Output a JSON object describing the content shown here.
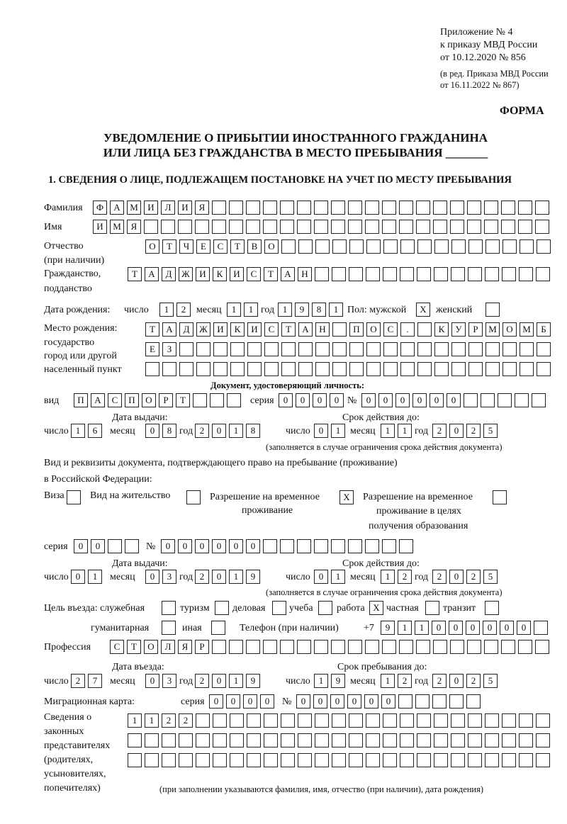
{
  "header": {
    "appendix_line1": "Приложение № 4",
    "appendix_line2": "к приказу МВД России",
    "appendix_line3": "от 10.12.2020 № 856",
    "edition_line1": "(в ред. Приказа МВД России",
    "edition_line2": "от 16.11.2022 № 867)",
    "form_label": "ФОРМА"
  },
  "title": {
    "line1": "УВЕДОМЛЕНИЕ О ПРИБЫТИИ ИНОСТРАННОГО ГРАЖДАНИНА",
    "line2": "ИЛИ ЛИЦА БЕЗ ГРАЖДАНСТВА В МЕСТО ПРЕБЫВАНИЯ _______"
  },
  "section1": {
    "heading": "1. СВЕДЕНИЯ О ЛИЦЕ, ПОДЛЕЖАЩЕМ ПОСТАНОВКЕ НА УЧЕТ ПО МЕСТУ ПРЕБЫВАНИЯ",
    "labels": {
      "surname": "Фамилия",
      "name": "Имя",
      "patronymic": "Отчество",
      "patronymic_note": "(при наличии)",
      "citizenship": "Гражданство,",
      "citizenship2": "подданство",
      "birth_date": "Дата рождения:",
      "day": "число",
      "month": "месяц",
      "year": "год",
      "sex_male": "Пол: мужской",
      "sex_female": "женский",
      "birthplace1": "Место рождения:",
      "birthplace2": "государство",
      "birthplace3": "город или другой",
      "birthplace4": "населенный пункт",
      "id_doc": "Документ, удостоверяющий личность:",
      "kind": "вид",
      "series": "серия",
      "number": "№",
      "issue_date": "Дата выдачи:",
      "valid_until": "Срок действия до:",
      "valid_note": "(заполняется в случае ограничения срока действия документа)",
      "stay_doc1": "Вид и реквизиты документа, подтверждающего право на пребывание (проживание)",
      "stay_doc2": "в Российской Федерации:",
      "visa": "Виза",
      "residence": "Вид на жительство",
      "temp_res1": "Разрешение на временное",
      "temp_res2": "проживание",
      "temp_edu1": "Разрешение на временное",
      "temp_edu2": "проживание в целях",
      "temp_edu3": "получения образования",
      "purpose": "Цель въезда: служебная",
      "tourism": "туризм",
      "business": "деловая",
      "study": "учеба",
      "work": "работа",
      "private": "частная",
      "transit": "транзит",
      "humanitarian": "гуманитарная",
      "other": "иная",
      "phone": "Телефон (при наличии)",
      "phone_prefix": "+7",
      "profession": "Профессия",
      "entry_date": "Дата въезда:",
      "stay_until": "Срок пребывания до:",
      "migration_card": "Миграционная карта:",
      "reps1": "Сведения о",
      "reps2": "законных",
      "reps3": "представителях",
      "reps4": "(родителях,",
      "reps5": "усыновителях,",
      "reps6": "попечителях)",
      "reps_note": "(при заполнении указываются фамилия, имя, отчество (при наличии), дата рождения)"
    },
    "fields": {
      "surname": [
        "Ф",
        "А",
        "М",
        "И",
        "Л",
        "И",
        "Я",
        "",
        "",
        "",
        "",
        "",
        "",
        "",
        "",
        "",
        "",
        "",
        "",
        "",
        "",
        "",
        "",
        "",
        "",
        "",
        ""
      ],
      "name": [
        "И",
        "М",
        "Я",
        "",
        "",
        "",
        "",
        "",
        "",
        "",
        "",
        "",
        "",
        "",
        "",
        "",
        "",
        "",
        "",
        "",
        "",
        "",
        "",
        "",
        "",
        "",
        ""
      ],
      "patronymic": [
        "О",
        "Т",
        "Ч",
        "Е",
        "С",
        "Т",
        "В",
        "О",
        "",
        "",
        "",
        "",
        "",
        "",
        "",
        "",
        "",
        "",
        "",
        "",
        "",
        "",
        "",
        ""
      ],
      "citizenship": [
        "Т",
        "А",
        "Д",
        "Ж",
        "И",
        "К",
        "И",
        "С",
        "Т",
        "А",
        "Н",
        "",
        "",
        "",
        "",
        "",
        "",
        "",
        "",
        "",
        "",
        "",
        "",
        "",
        ""
      ],
      "birth_day": [
        "1",
        "2"
      ],
      "birth_month": [
        "1",
        "1"
      ],
      "birth_year": [
        "1",
        "9",
        "8",
        "1"
      ],
      "sex_male": [
        "X"
      ],
      "sex_female": [
        ""
      ],
      "birthplace_1": [
        "Т",
        "А",
        "Д",
        "Ж",
        "И",
        "К",
        "И",
        "С",
        "Т",
        "А",
        "Н",
        "",
        "П",
        "О",
        "С",
        ".",
        "",
        "К",
        "У",
        "Р",
        "М",
        "О",
        "М",
        "Б"
      ],
      "birthplace_2": [
        "Е",
        "З",
        "",
        "",
        "",
        "",
        "",
        "",
        "",
        "",
        "",
        "",
        "",
        "",
        "",
        "",
        "",
        "",
        "",
        "",
        "",
        "",
        "",
        ""
      ],
      "birthplace_3": [
        "",
        "",
        "",
        "",
        "",
        "",
        "",
        "",
        "",
        "",
        "",
        "",
        "",
        "",
        "",
        "",
        "",
        "",
        "",
        "",
        "",
        "",
        "",
        ""
      ],
      "id_kind": [
        "П",
        "А",
        "С",
        "П",
        "О",
        "Р",
        "Т",
        "",
        "",
        ""
      ],
      "id_series": [
        "0",
        "0",
        "0",
        "0"
      ],
      "id_number": [
        "0",
        "0",
        "0",
        "0",
        "0",
        "0",
        "",
        "",
        "",
        "",
        ""
      ],
      "id_issue_day": [
        "1",
        "6"
      ],
      "id_issue_month": [
        "0",
        "8"
      ],
      "id_issue_year": [
        "2",
        "0",
        "1",
        "8"
      ],
      "id_valid_day": [
        "0",
        "1"
      ],
      "id_valid_month": [
        "1",
        "1"
      ],
      "id_valid_year": [
        "2",
        "0",
        "2",
        "5"
      ],
      "visa": [
        ""
      ],
      "residence": [
        ""
      ],
      "temp_res": [
        "X"
      ],
      "temp_edu": [
        ""
      ],
      "stay_series": [
        "0",
        "0",
        "",
        ""
      ],
      "stay_number": [
        "0",
        "0",
        "0",
        "0",
        "0",
        "0",
        "",
        "",
        "",
        "",
        "",
        "",
        "",
        "",
        ""
      ],
      "stay_issue_day": [
        "0",
        "1"
      ],
      "stay_issue_month": [
        "0",
        "3"
      ],
      "stay_issue_year": [
        "2",
        "0",
        "1",
        "9"
      ],
      "stay_valid_day": [
        "0",
        "1"
      ],
      "stay_valid_month": [
        "1",
        "2"
      ],
      "stay_valid_year": [
        "2",
        "0",
        "2",
        "5"
      ],
      "p_official": [
        ""
      ],
      "p_tourism": [
        ""
      ],
      "p_business": [
        ""
      ],
      "p_study": [
        ""
      ],
      "p_work": [
        "X"
      ],
      "p_private": [
        ""
      ],
      "p_transit": [
        ""
      ],
      "p_humanitarian": [
        ""
      ],
      "p_other": [
        ""
      ],
      "phone": [
        "9",
        "1",
        "1",
        "0",
        "0",
        "0",
        "0",
        "0",
        "0",
        ""
      ],
      "profession": [
        "С",
        "Т",
        "О",
        "Л",
        "Я",
        "Р",
        "",
        "",
        "",
        "",
        "",
        "",
        "",
        "",
        "",
        "",
        "",
        "",
        "",
        "",
        "",
        "",
        "",
        "",
        "",
        ""
      ],
      "entry_day": [
        "2",
        "7"
      ],
      "entry_month": [
        "0",
        "3"
      ],
      "entry_year": [
        "2",
        "0",
        "1",
        "9"
      ],
      "until_day": [
        "1",
        "9"
      ],
      "until_month": [
        "1",
        "2"
      ],
      "until_year": [
        "2",
        "0",
        "2",
        "5"
      ],
      "mc_series": [
        "0",
        "0",
        "0",
        "0"
      ],
      "mc_number": [
        "0",
        "0",
        "0",
        "0",
        "0",
        "0",
        "",
        "",
        "",
        "",
        ""
      ],
      "reps_1": [
        "1",
        "1",
        "2",
        "2",
        "",
        "",
        "",
        "",
        "",
        "",
        "",
        "",
        "",
        "",
        "",
        "",
        "",
        "",
        "",
        "",
        "",
        "",
        "",
        "",
        ""
      ],
      "reps_2": [
        "",
        "",
        "",
        "",
        "",
        "",
        "",
        "",
        "",
        "",
        "",
        "",
        "",
        "",
        "",
        "",
        "",
        "",
        "",
        "",
        "",
        "",
        "",
        "",
        ""
      ],
      "reps_3": [
        "",
        "",
        "",
        "",
        "",
        "",
        "",
        "",
        "",
        "",
        "",
        "",
        "",
        "",
        "",
        "",
        "",
        "",
        "",
        "",
        "",
        "",
        "",
        "",
        ""
      ]
    }
  }
}
